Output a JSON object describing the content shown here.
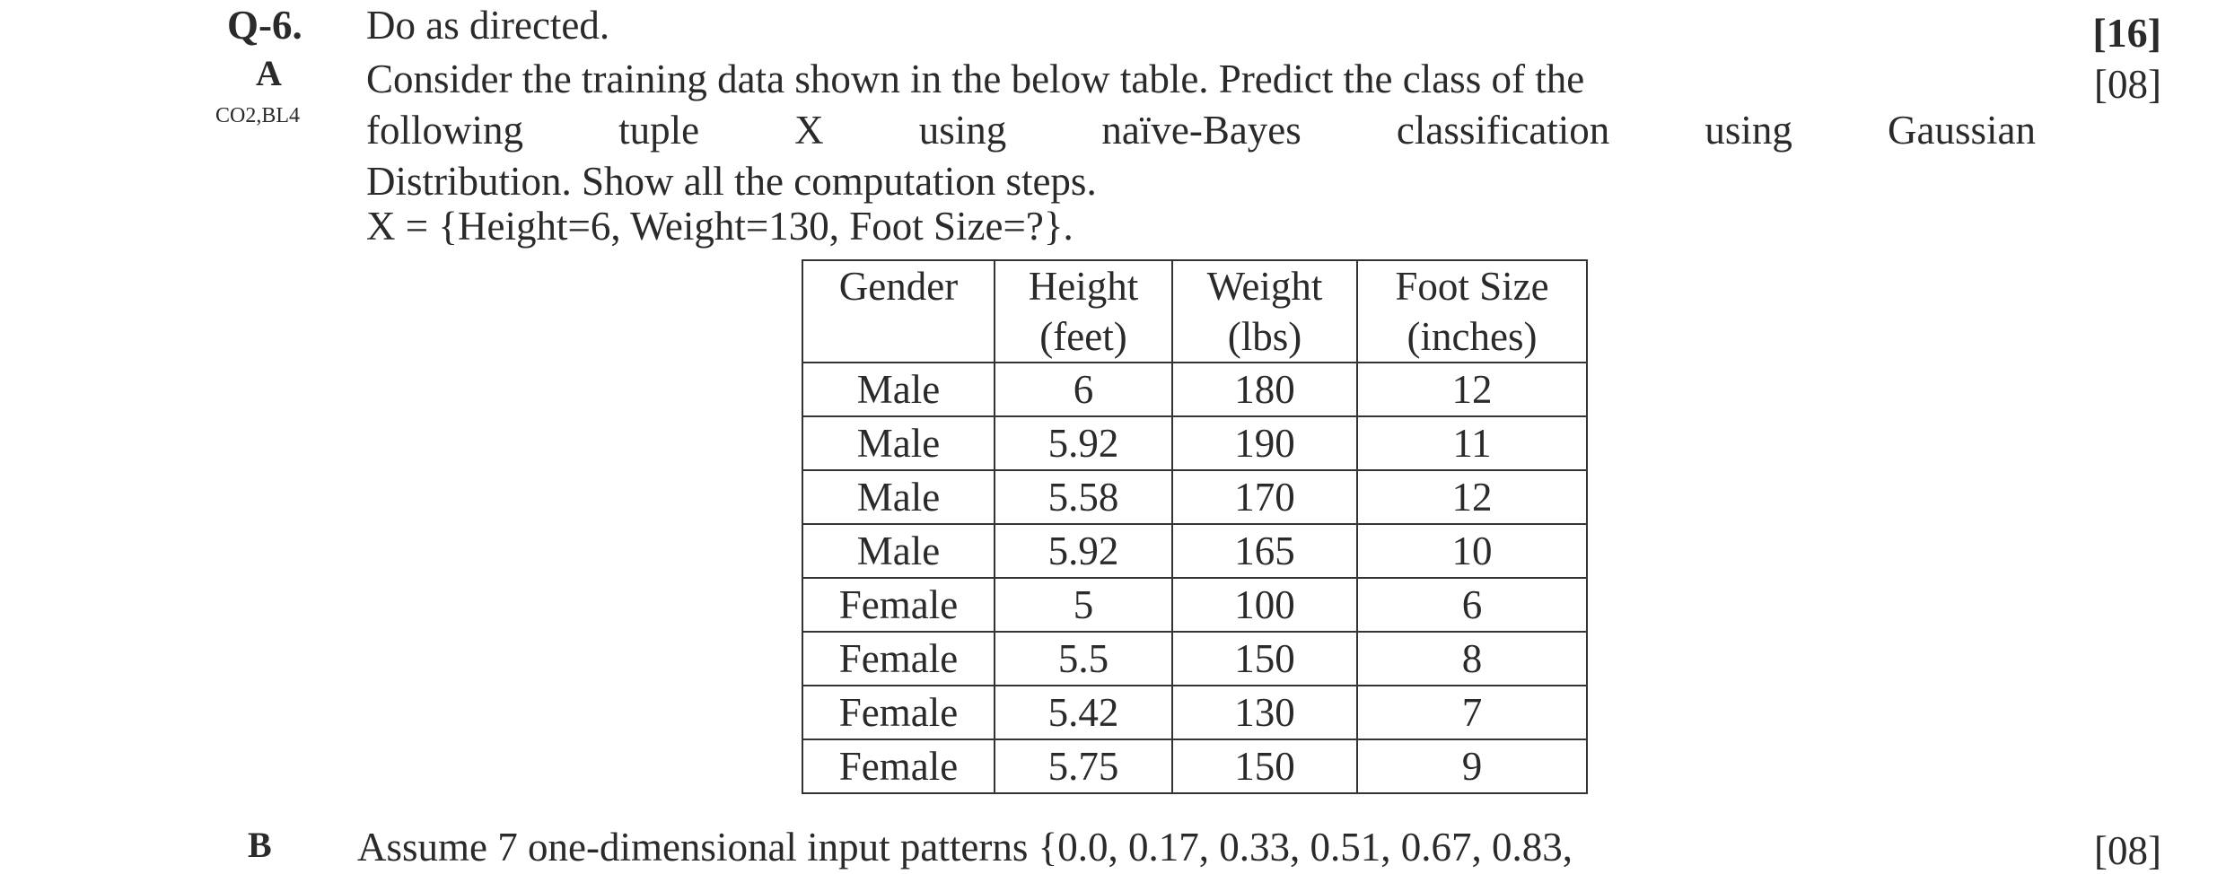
{
  "question": {
    "number": "Q-6.",
    "title": "Do as directed.",
    "marks": "[16]"
  },
  "part_a": {
    "label": "A",
    "outcome": "CO2,BL4",
    "marks": "[08]",
    "text_lines": [
      "Consider the training data shown in the below table. Predict the class of the",
      "following tuple X using naïve-Bayes classification using Gaussian",
      "Distribution. Show all the computation steps."
    ],
    "tuple": "X = {Height=6, Weight=130, Foot Size=?}."
  },
  "table": {
    "headers": [
      [
        "Gender",
        ""
      ],
      [
        "Height",
        "(feet)"
      ],
      [
        "Weight",
        "(lbs)"
      ],
      [
        "Foot Size",
        "(inches)"
      ]
    ],
    "rows": [
      [
        "Male",
        "6",
        "180",
        "12"
      ],
      [
        "Male",
        "5.92",
        "190",
        "11"
      ],
      [
        "Male",
        "5.58",
        "170",
        "12"
      ],
      [
        "Male",
        "5.92",
        "165",
        "10"
      ],
      [
        "Female",
        "5",
        "100",
        "6"
      ],
      [
        "Female",
        "5.5",
        "150",
        "8"
      ],
      [
        "Female",
        "5.42",
        "130",
        "7"
      ],
      [
        "Female",
        "5.75",
        "150",
        "9"
      ]
    ]
  },
  "part_b": {
    "label": "B",
    "text": "Assume 7 one-dimensional input patterns {0.0, 0.17, 0.33, 0.51, 0.67, 0.83,",
    "marks": "[08]"
  }
}
